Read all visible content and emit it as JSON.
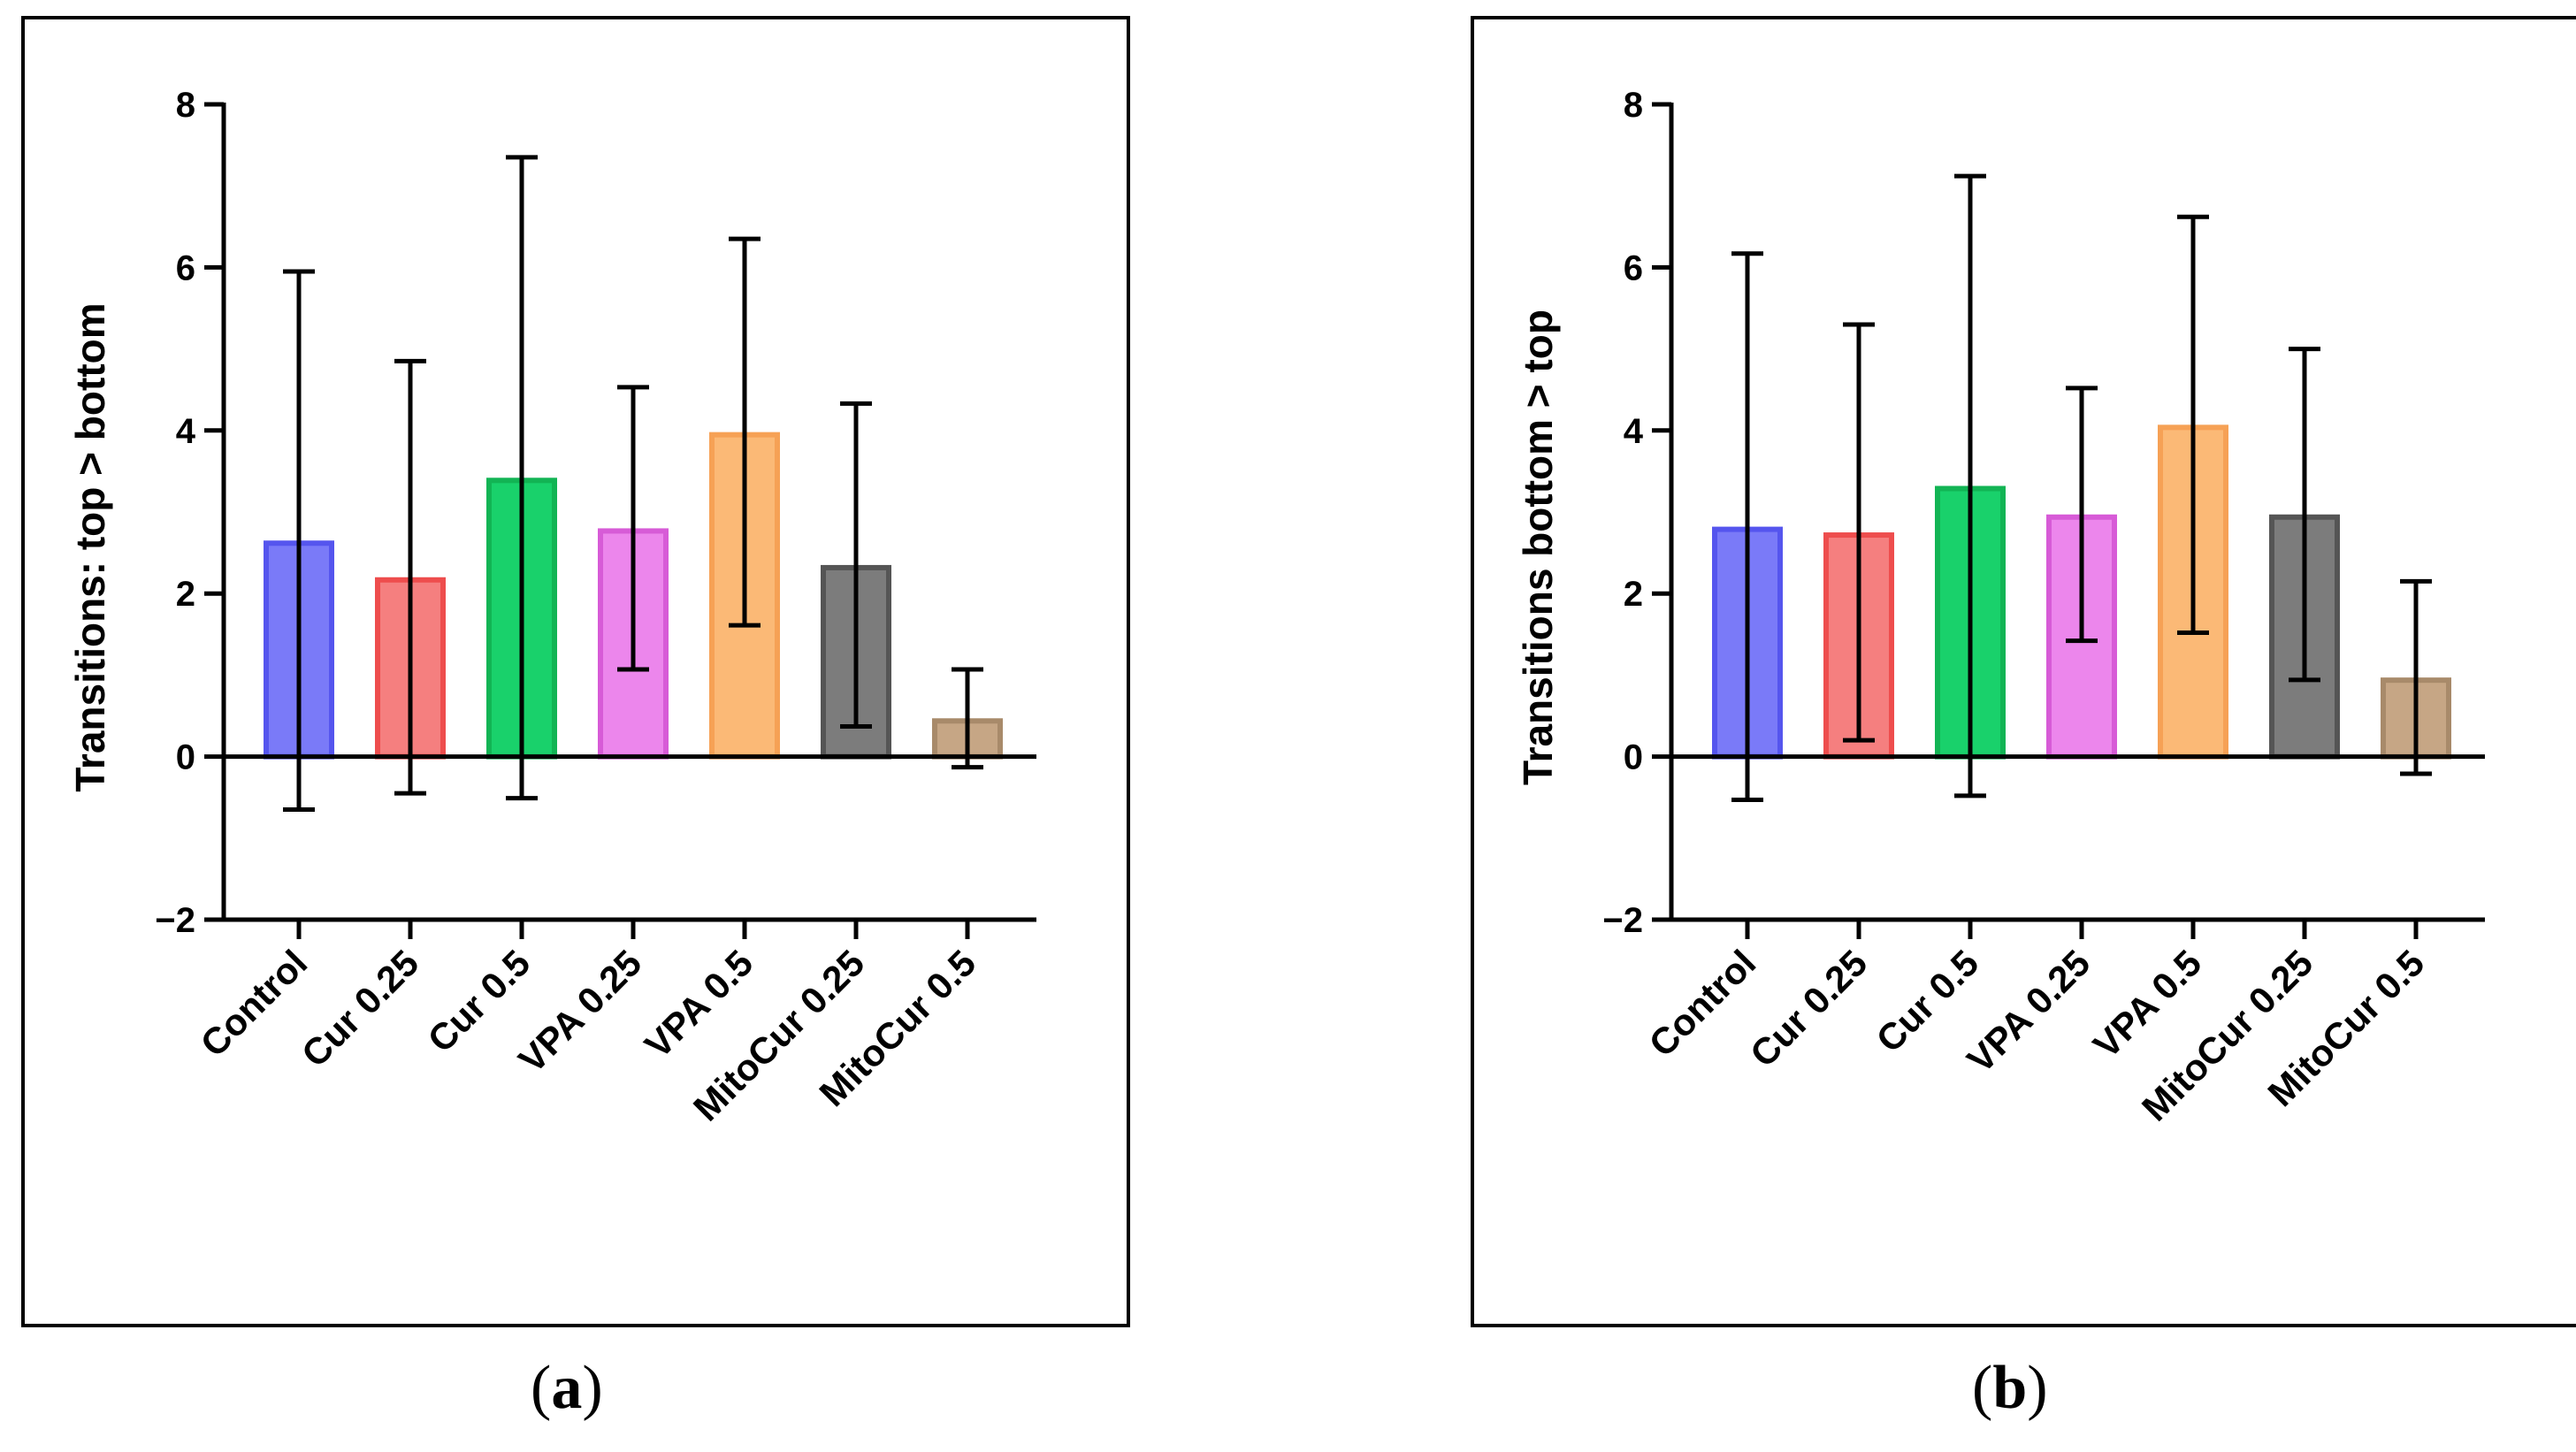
{
  "chart_data": [
    {
      "type": "bar",
      "panel": "a",
      "caption_letter": "a",
      "ylabel": "Transitions: top > bottom",
      "xlabel": "",
      "ylim": [
        -2,
        8
      ],
      "yticks": [
        "−2",
        "0",
        "2",
        "4",
        "6",
        "8"
      ],
      "ytick_values": [
        -2,
        0,
        2,
        4,
        6,
        8
      ],
      "categories": [
        "Control",
        "Cur 0.25",
        "Cur 0.5",
        "VPA 0.25",
        "VPA 0.5",
        "MitoCur 0.25",
        "MitoCur 0.5"
      ],
      "values": [
        2.65,
        2.2,
        3.42,
        2.8,
        3.98,
        2.35,
        0.47
      ],
      "error": [
        3.3,
        2.65,
        3.93,
        1.73,
        2.37,
        1.98,
        0.6
      ],
      "colors": [
        "#7a7af8",
        "#f57f7f",
        "#19d16b",
        "#ec86ec",
        "#fbb976",
        "#7c7c7c",
        "#c6a685"
      ],
      "edge_colors": [
        "#5555ee",
        "#ee4d4d",
        "#12b454",
        "#d75bd7",
        "#f6a155",
        "#555555",
        "#a88a6a"
      ]
    },
    {
      "type": "bar",
      "panel": "b",
      "caption_letter": "b",
      "ylabel": "Transitions bottom > top",
      "xlabel": "",
      "ylim": [
        -2,
        8
      ],
      "yticks": [
        "−2",
        "0",
        "2",
        "4",
        "6",
        "8"
      ],
      "ytick_values": [
        -2,
        0,
        2,
        4,
        6,
        8
      ],
      "categories": [
        "Control",
        "Cur 0.25",
        "Cur 0.5",
        "VPA 0.25",
        "VPA 0.5",
        "MitoCur 0.25",
        "MitoCur 0.5"
      ],
      "values": [
        2.82,
        2.75,
        3.32,
        2.97,
        4.07,
        2.97,
        0.97
      ],
      "error": [
        3.35,
        2.55,
        3.8,
        1.55,
        2.55,
        2.03,
        1.18
      ],
      "colors": [
        "#7a7af8",
        "#f57f7f",
        "#19d16b",
        "#ec86ec",
        "#fbb976",
        "#7c7c7c",
        "#c6a685"
      ],
      "edge_colors": [
        "#5555ee",
        "#ee4d4d",
        "#12b454",
        "#d75bd7",
        "#f6a155",
        "#555555",
        "#a88a6a"
      ]
    }
  ]
}
